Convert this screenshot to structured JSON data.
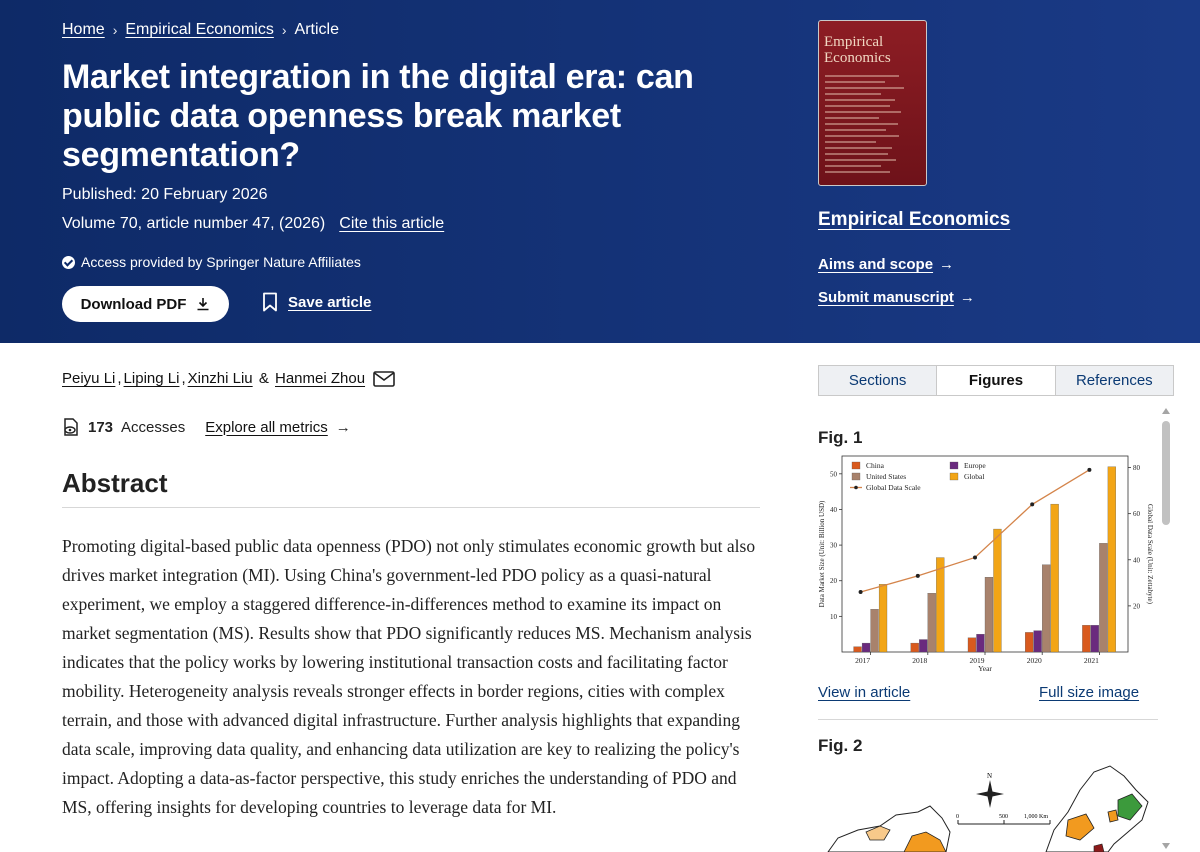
{
  "breadcrumb": {
    "home": "Home",
    "journal": "Empirical Economics",
    "current": "Article"
  },
  "article": {
    "title": "Market integration in the digital era: can public data openness break market segmentation?",
    "published": "Published: 20 February 2026",
    "volume": "Volume 70, article number 47, (2026)",
    "cite": "Cite this article",
    "access": "Access provided by Springer Nature Affiliates",
    "download_pdf": "Download PDF",
    "save_article": "Save article"
  },
  "journal": {
    "cover_title": "Empirical Economics",
    "name": "Empirical Economics",
    "aims": "Aims and scope",
    "submit": "Submit manuscript"
  },
  "authors": [
    {
      "name": "Peiyu Li",
      "sep": ", "
    },
    {
      "name": "Liping Li",
      "sep": ", "
    },
    {
      "name": "Xinzhi Liu",
      "sep": " & "
    },
    {
      "name": "Hanmei Zhou",
      "sep": ""
    }
  ],
  "metrics": {
    "accesses_count": "173",
    "accesses_label": "Accesses",
    "explore": "Explore all metrics"
  },
  "abstract": {
    "heading": "Abstract",
    "text": "Promoting digital-based public data openness (PDO) not only stimulates economic growth but also drives market integration (MI). Using China's government-led PDO policy as a quasi-natural experiment, we employ a staggered difference-in-differences method to examine its impact on market segmentation (MS). Results show that PDO significantly reduces MS. Mechanism analysis indicates that the policy works by lowering institutional transaction costs and facilitating factor mobility. Heterogeneity analysis reveals stronger effects in border regions, cities with complex terrain, and those with advanced digital infrastructure. Further analysis highlights that expanding data scale, improving data quality, and enhancing data utilization are key to realizing the policy's impact. Adopting a data-as-factor perspective, this study enriches the understanding of PDO and MS, offering insights for developing countries to leverage data for MI."
  },
  "sidebar": {
    "tabs": [
      "Sections",
      "Figures",
      "References"
    ],
    "active_tab": "Figures",
    "fig1_label": "Fig. 1",
    "fig2_label": "Fig. 2",
    "view_in_article": "View in article",
    "full_size": "Full size image",
    "map_text": {
      "compass": "N",
      "scale_0": "0",
      "scale_500": "500",
      "scale_1000": "1,000 Km"
    }
  },
  "chart_data": {
    "type": "bar",
    "categories": [
      "2017",
      "2018",
      "2019",
      "2020",
      "2021"
    ],
    "xlabel": "Year",
    "ylabel": "Data Market Size (Unit: Billion USD)",
    "y2label": "Global Data Scale (Unit: Zettabyte)",
    "ylim": [
      0,
      55
    ],
    "y2lim": [
      0,
      85
    ],
    "yticks": [
      10,
      20,
      30,
      40,
      50
    ],
    "y2ticks": [
      20,
      40,
      60,
      80
    ],
    "series": [
      {
        "name": "China",
        "color": "#d95a1e",
        "values": [
          1.5,
          2.5,
          4,
          5.5,
          7.5
        ]
      },
      {
        "name": "United States",
        "color": "#a8826c",
        "values": [
          12,
          16.5,
          21,
          24.5,
          30.5
        ]
      },
      {
        "name": "Europe",
        "color": "#6a2a7e",
        "values": [
          2.5,
          3.5,
          5,
          6,
          7.5
        ]
      },
      {
        "name": "Global",
        "color": "#f2a516",
        "values": [
          19,
          26.5,
          34.5,
          41.5,
          52
        ]
      }
    ],
    "line": {
      "name": "Global Data Scale",
      "color": "#d4844a",
      "values": [
        26,
        33,
        41,
        64,
        79
      ]
    },
    "legend": "top-left",
    "grid": false
  }
}
